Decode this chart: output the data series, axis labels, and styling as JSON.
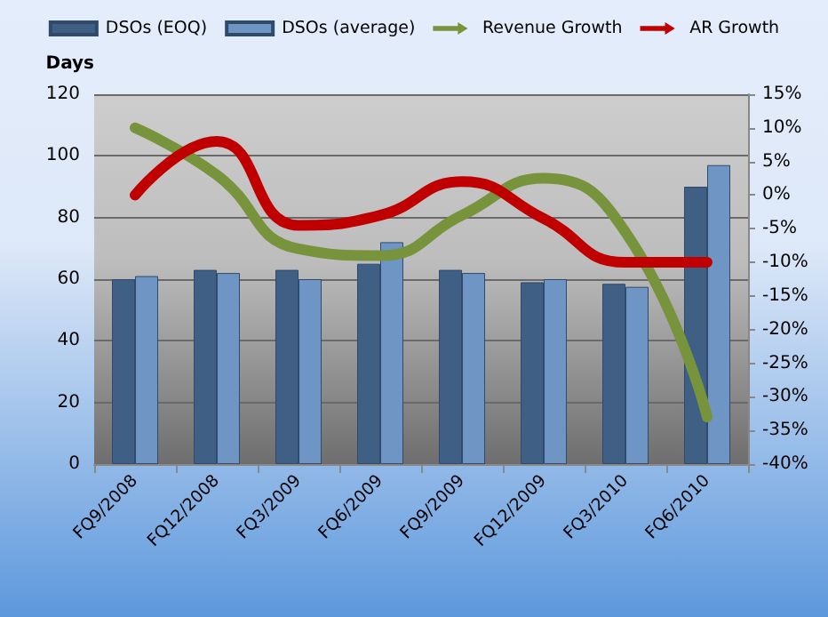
{
  "chart_data": {
    "type": "bar",
    "ylabel": "Days",
    "categories": [
      "FQ9/2008",
      "FQ12/2008",
      "FQ3/2009",
      "FQ6/2009",
      "FQ9/2009",
      "FQ12/2009",
      "FQ3/2010",
      "FQ6/2010"
    ],
    "series": [
      {
        "name": "DSOs (EOQ)",
        "color": "#3f5f85",
        "values": [
          60,
          63,
          63,
          65,
          63,
          59,
          58.5,
          90
        ]
      },
      {
        "name": "DSOs (average)",
        "color": "#6f95c4",
        "values": [
          61,
          62,
          60,
          72,
          62,
          60,
          57.5,
          97
        ]
      },
      {
        "name": "Revenue Growth",
        "type": "line",
        "axis": "y2",
        "color": "#77933c",
        "values": [
          10,
          3,
          -8,
          -9,
          -3,
          2.5,
          -5.5,
          -33
        ]
      },
      {
        "name": "AR Growth",
        "type": "line",
        "axis": "y2",
        "color": "#c00000",
        "values": [
          0,
          8,
          -4.5,
          -3,
          2,
          -3.5,
          -10,
          -10
        ]
      }
    ],
    "ylim": [
      0,
      120
    ],
    "yticks": [
      0,
      20,
      40,
      60,
      80,
      100,
      120
    ],
    "y2lim": [
      -40,
      15
    ],
    "y2ticks": [
      {
        "value": -40,
        "label": "-40%"
      },
      {
        "value": -35,
        "label": "-35%"
      },
      {
        "value": -30,
        "label": "-30%"
      },
      {
        "value": -25,
        "label": "-25%"
      },
      {
        "value": -20,
        "label": "-20%"
      },
      {
        "value": -15,
        "label": "-15%"
      },
      {
        "value": -10,
        "label": "-10%"
      },
      {
        "value": -5,
        "label": "-5%"
      },
      {
        "value": 0,
        "label": "0%"
      },
      {
        "value": 5,
        "label": "5%"
      },
      {
        "value": 10,
        "label": "10%"
      },
      {
        "value": 15,
        "label": "15%"
      }
    ],
    "grid": "y",
    "legend": "top"
  }
}
